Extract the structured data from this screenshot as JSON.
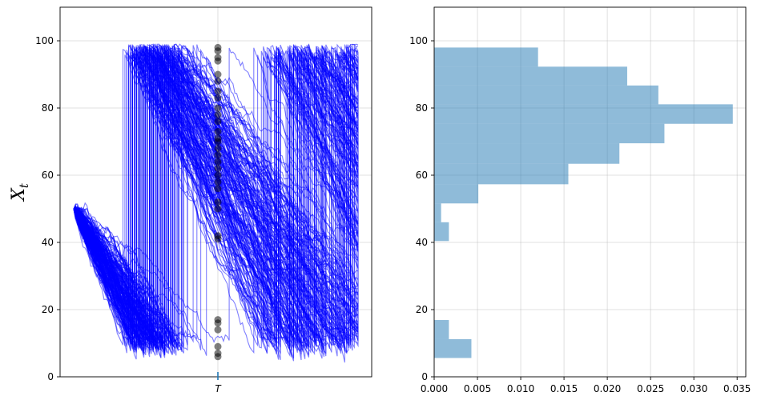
{
  "chart_data": [
    {
      "type": "line",
      "subtype": "simulated-paths",
      "ylabel": "X",
      "ylabel_subscript": "t",
      "ylim": [
        0,
        110
      ],
      "yticks": [
        0,
        20,
        40,
        60,
        80,
        100
      ],
      "xtick_label": "T",
      "grid": true,
      "colors": {
        "paths": "#0000ff",
        "markers": "#000000",
        "tick_marker": "#1f77b4"
      },
      "series": {
        "count": 200,
        "start_value": 50,
        "upper_bound": 99,
        "lower_bound": 0
      },
      "terminal_markers_y": [
        98,
        97,
        95,
        94,
        90,
        88,
        85,
        83,
        80,
        78,
        76,
        73,
        71,
        70,
        68,
        66,
        64,
        62,
        60,
        58,
        56,
        52,
        50,
        42,
        41,
        17,
        16,
        14,
        9,
        7,
        6
      ]
    },
    {
      "type": "bar",
      "subtype": "horizontal-histogram",
      "ylim": [
        0,
        110
      ],
      "xlim": [
        0,
        0.036
      ],
      "yticks": [
        0,
        20,
        40,
        60,
        80,
        100
      ],
      "xticks": [
        "0.000",
        "0.005",
        "0.010",
        "0.015",
        "0.020",
        "0.025",
        "0.030",
        "0.035"
      ],
      "grid": true,
      "colors": {
        "bars": "#1f77b4"
      },
      "bins": [
        {
          "y0": 5.6,
          "y1": 11.2,
          "density": 0.0043
        },
        {
          "y0": 11.2,
          "y1": 16.9,
          "density": 0.0017
        },
        {
          "y0": 40.4,
          "y1": 46.0,
          "density": 0.0017
        },
        {
          "y0": 46.0,
          "y1": 51.6,
          "density": 0.0008
        },
        {
          "y0": 51.6,
          "y1": 57.3,
          "density": 0.0051
        },
        {
          "y0": 57.3,
          "y1": 63.4,
          "density": 0.0155
        },
        {
          "y0": 63.4,
          "y1": 69.5,
          "density": 0.0214
        },
        {
          "y0": 69.5,
          "y1": 75.3,
          "density": 0.0266
        },
        {
          "y0": 75.3,
          "y1": 81.1,
          "density": 0.0345
        },
        {
          "y0": 81.1,
          "y1": 86.7,
          "density": 0.0259
        },
        {
          "y0": 86.7,
          "y1": 92.3,
          "density": 0.0223
        },
        {
          "y0": 92.3,
          "y1": 98.0,
          "density": 0.012
        }
      ]
    }
  ]
}
